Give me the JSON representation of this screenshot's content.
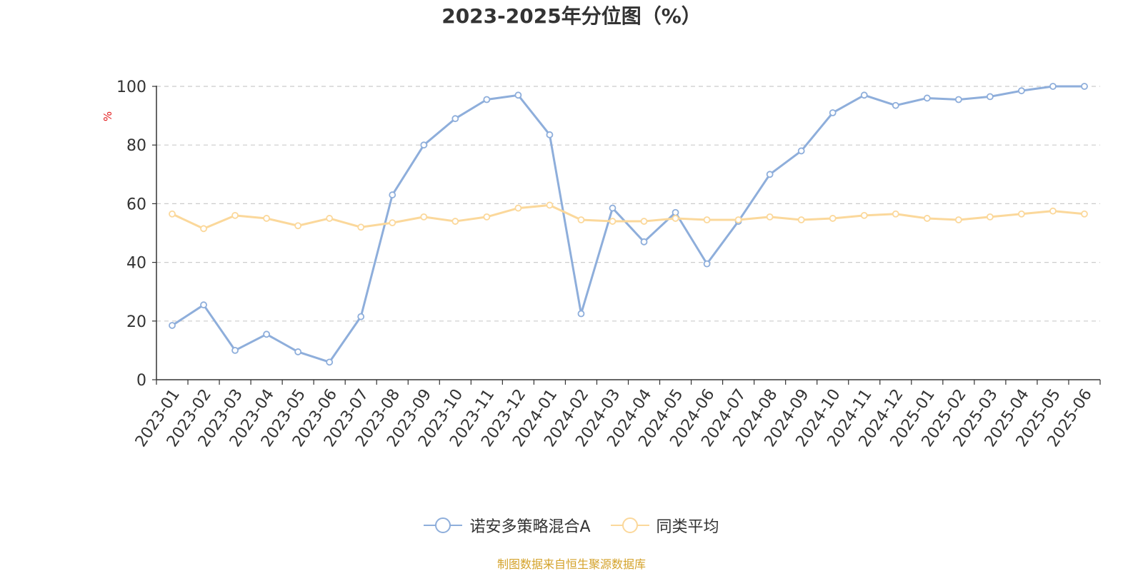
{
  "chart_data": {
    "type": "line",
    "title": "2023-2025年分位图（%）",
    "ylabel": "%",
    "xlabel": "",
    "ylim": [
      0,
      100
    ],
    "yticks": [
      0,
      20,
      40,
      60,
      80,
      100
    ],
    "grid": true,
    "legend_position": "bottom",
    "categories": [
      "2023-01",
      "2023-02",
      "2023-03",
      "2023-04",
      "2023-05",
      "2023-06",
      "2023-07",
      "2023-08",
      "2023-09",
      "2023-10",
      "2023-11",
      "2023-12",
      "2024-01",
      "2024-02",
      "2024-03",
      "2024-04",
      "2024-05",
      "2024-06",
      "2024-07",
      "2024-08",
      "2024-09",
      "2024-10",
      "2024-11",
      "2024-12",
      "2025-01",
      "2025-02",
      "2025-03",
      "2025-04",
      "2025-05",
      "2025-06"
    ],
    "series": [
      {
        "name": "诺安多策略混合A",
        "color": "#8eaedb",
        "values": [
          18.5,
          25.5,
          10,
          15.5,
          9.5,
          6,
          21.5,
          63,
          80,
          89,
          95.5,
          97,
          83.5,
          22.5,
          58.5,
          47,
          57,
          39.5,
          54,
          70,
          78,
          91,
          97,
          93.5,
          96,
          95.5,
          96.5,
          98.5,
          100,
          100
        ]
      },
      {
        "name": "同类平均",
        "color": "#fbd89b",
        "values": [
          56.5,
          51.5,
          56,
          55,
          52.5,
          55,
          52,
          53.5,
          55.5,
          54,
          55.5,
          58.5,
          59.5,
          54.5,
          54,
          54,
          55,
          54.5,
          54.5,
          55.5,
          54.5,
          55,
          56,
          56.5,
          55,
          54.5,
          55.5,
          56.5,
          57.5,
          56.5
        ]
      }
    ],
    "footnote": "制图数据来自恒生聚源数据库"
  }
}
